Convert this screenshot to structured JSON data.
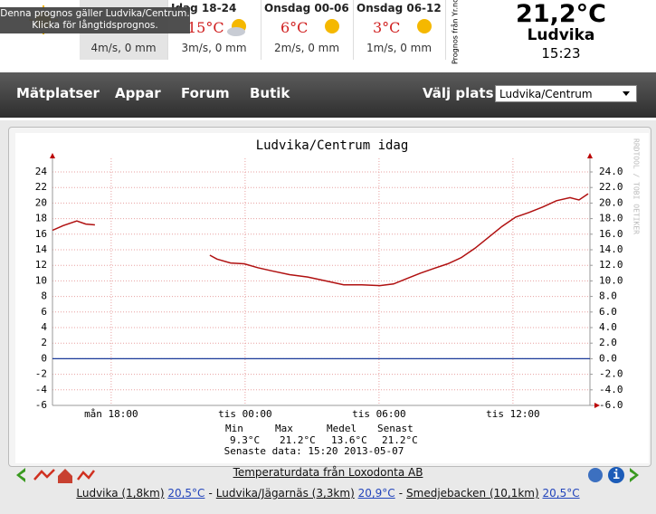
{
  "tooltip": {
    "lines": [
      "Denna prognos gäller Ludvika/Centrum.",
      "Klicka för långtidsprognos."
    ]
  },
  "forecast": {
    "cells": [
      {
        "wind": "4m/s, 0 mm"
      },
      {
        "title": "Idag 18-24",
        "temp": "15°C",
        "wind": "3m/s, 0 mm"
      },
      {
        "title": "Onsdag 00-06",
        "temp": "6°C",
        "wind": "2m/s, 0 mm"
      },
      {
        "title": "Onsdag 06-12",
        "temp": "3°C",
        "wind": "1m/s, 0 mm"
      }
    ],
    "source": "Prognos från Yr.no"
  },
  "current": {
    "temp": "21,2°C",
    "place": "Ludvika",
    "time": "15:23"
  },
  "nav": {
    "items": [
      "Mätplatser",
      "Appar",
      "Forum",
      "Butik"
    ],
    "select_label": "Välj plats:",
    "selected": "Ludvika/Centrum"
  },
  "chart_data": {
    "type": "line",
    "title": "Ludvika/Centrum idag",
    "watermark": "RRDTOOL / TOBI OETIKER",
    "color": "#b01010",
    "grid": true,
    "x": [
      15.37,
      15.85,
      16.46,
      16.86,
      17.27,
      20,
      22.42,
      22.74,
      23.35,
      23.96,
      24.57,
      25.17,
      25.99,
      26.8,
      27.61,
      28.42,
      29.23,
      30.04,
      30.65,
      31.25,
      31.86,
      32.47,
      33.08,
      33.69,
      34.3,
      34.91,
      35.51,
      36.12,
      36.73,
      37.34,
      37.95,
      38.56,
      38.96,
      39.37
    ],
    "values": [
      16.5,
      17.1,
      17.7,
      17.3,
      17.2,
      null,
      13.3,
      12.8,
      12.3,
      12.2,
      11.7,
      11.3,
      10.8,
      10.5,
      10.0,
      9.5,
      9.5,
      9.4,
      9.6,
      10.3,
      11.0,
      11.6,
      12.2,
      13.0,
      14.2,
      15.6,
      17.0,
      18.2,
      18.8,
      19.5,
      20.3,
      20.7,
      20.4,
      21.2
    ],
    "xlim": [
      15.37,
      39.45
    ],
    "xticks": [
      {
        "value": 18,
        "label": "mån 18:00"
      },
      {
        "value": 24,
        "label": "tis 00:00"
      },
      {
        "value": 30,
        "label": "tis 06:00"
      },
      {
        "value": 36,
        "label": "tis 12:00"
      }
    ],
    "ylim": [
      -6,
      24
    ],
    "yticks": [
      -6,
      -4,
      -2,
      0,
      2,
      4,
      6,
      8,
      10,
      12,
      14,
      16,
      18,
      20,
      22,
      24
    ],
    "y2lim": [
      -6,
      24
    ],
    "y2ticks": [
      {
        "value": -6,
        "label": "-6.0"
      },
      {
        "value": -4,
        "label": "-4.0"
      },
      {
        "value": -2,
        "label": "-2.0"
      },
      {
        "value": 0,
        "label": "0.0"
      },
      {
        "value": 2,
        "label": "2.0"
      },
      {
        "value": 4,
        "label": "4.0"
      },
      {
        "value": 6,
        "label": "6.0"
      },
      {
        "value": 8,
        "label": "8.0"
      },
      {
        "value": 10,
        "label": "10.0"
      },
      {
        "value": 12,
        "label": "12.0"
      },
      {
        "value": 14,
        "label": "14.0"
      },
      {
        "value": 16,
        "label": "16.0"
      },
      {
        "value": 18,
        "label": "18.0"
      },
      {
        "value": 20,
        "label": "20.0"
      },
      {
        "value": 22,
        "label": "22.0"
      },
      {
        "value": 24,
        "label": "24.0"
      }
    ],
    "stats": {
      "headers": [
        "Min",
        "Max",
        "Medel",
        "Senast"
      ],
      "values": [
        "9.3°C",
        "21.2°C",
        "13.6°C",
        "21.2°C"
      ],
      "last_data": "Senaste data: 15:20 2013-05-07"
    }
  },
  "footer": {
    "credit": "Temperaturdata från Loxodonta AB",
    "separator": "-",
    "stations": [
      {
        "name": "Ludvika (1,8km)",
        "temp": "20,5°C"
      },
      {
        "name": "Ludvika/Jägarnäs (3,3km)",
        "temp": "20,9°C"
      },
      {
        "name": "Smedjebacken (10,1km)",
        "temp": "20,5°C"
      }
    ]
  }
}
